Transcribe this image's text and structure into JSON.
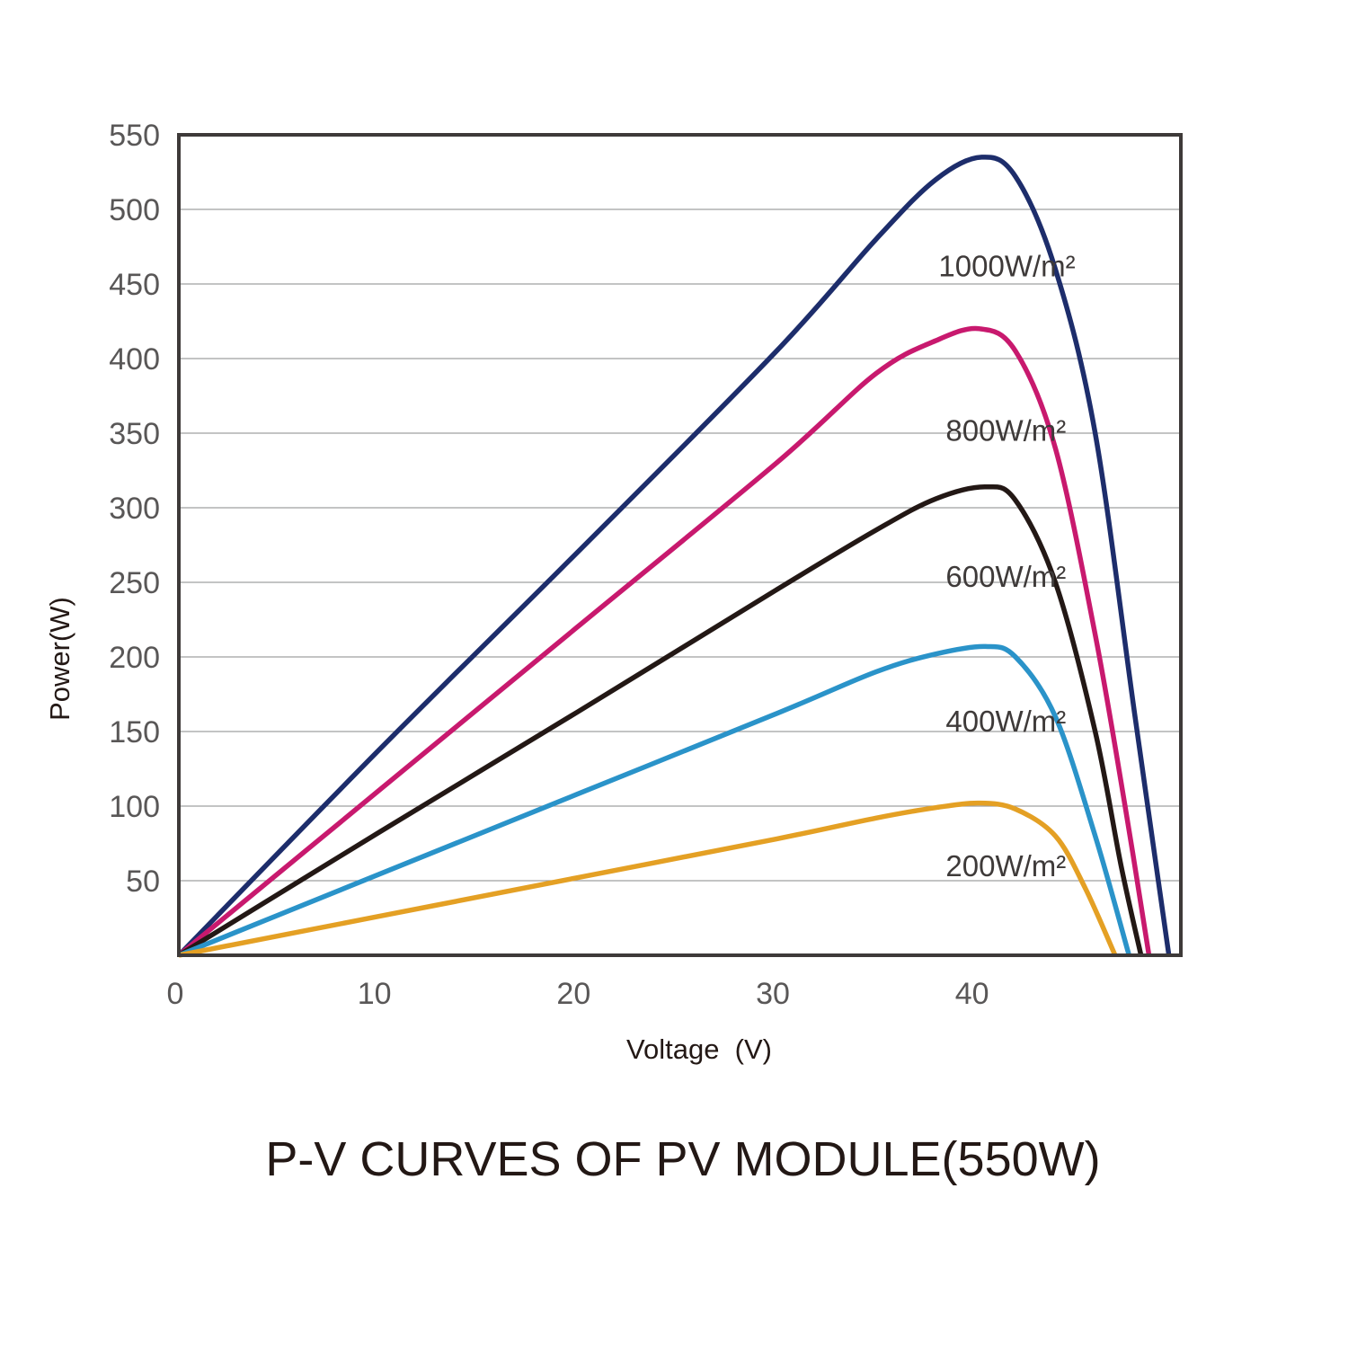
{
  "chart_data": {
    "type": "line",
    "title": "P-V CURVES OF PV MODULE(550W)",
    "xlabel": "Voltage  (V)",
    "ylabel": "Power(W)",
    "xlim": [
      0,
      50.3
    ],
    "ylim": [
      0,
      550
    ],
    "xticks": [
      0,
      10,
      20,
      30,
      40
    ],
    "yticks": [
      50,
      100,
      150,
      200,
      250,
      300,
      350,
      400,
      450,
      500,
      550
    ],
    "grid": "horizontal",
    "series": [
      {
        "name": "1000W/m²",
        "color": "#1d2d6b",
        "label_at": [
          38.5,
          455
        ],
        "points": [
          [
            0,
            0
          ],
          [
            10,
            137
          ],
          [
            20,
            270
          ],
          [
            30,
            405
          ],
          [
            35,
            480
          ],
          [
            38,
            520
          ],
          [
            40.3,
            535
          ],
          [
            42,
            522
          ],
          [
            44,
            460
          ],
          [
            46,
            350
          ],
          [
            48,
            160
          ],
          [
            49.7,
            0
          ]
        ]
      },
      {
        "name": "800W/m²",
        "color": "#c8196e",
        "label_at": [
          38.5,
          345
        ],
        "points": [
          [
            0,
            0
          ],
          [
            10,
            110
          ],
          [
            20,
            220
          ],
          [
            30,
            330
          ],
          [
            35,
            390
          ],
          [
            38,
            412
          ],
          [
            40.2,
            420
          ],
          [
            42,
            405
          ],
          [
            44,
            340
          ],
          [
            46,
            215
          ],
          [
            47.5,
            100
          ],
          [
            48.7,
            0
          ]
        ]
      },
      {
        "name": "600W/m²",
        "color": "#231815",
        "label_at": [
          38.5,
          247
        ],
        "points": [
          [
            0,
            0
          ],
          [
            10,
            82
          ],
          [
            20,
            163
          ],
          [
            30,
            245
          ],
          [
            35,
            285
          ],
          [
            38,
            306
          ],
          [
            40.5,
            314
          ],
          [
            42,
            305
          ],
          [
            44,
            250
          ],
          [
            46,
            150
          ],
          [
            47.3,
            60
          ],
          [
            48.3,
            0
          ]
        ]
      },
      {
        "name": "400W/m²",
        "color": "#2a93c9",
        "label_at": [
          38.5,
          150
        ],
        "points": [
          [
            0,
            0
          ],
          [
            10,
            54
          ],
          [
            20,
            108
          ],
          [
            30,
            162
          ],
          [
            35,
            190
          ],
          [
            38,
            202
          ],
          [
            40.5,
            207
          ],
          [
            42,
            200
          ],
          [
            44,
            160
          ],
          [
            46,
            80
          ],
          [
            47.7,
            0
          ]
        ]
      },
      {
        "name": "200W/m²",
        "color": "#e4a024",
        "label_at": [
          38.5,
          53
        ],
        "points": [
          [
            0,
            0
          ],
          [
            10,
            26
          ],
          [
            20,
            52
          ],
          [
            30,
            78
          ],
          [
            35,
            92
          ],
          [
            38,
            99
          ],
          [
            40.2,
            102
          ],
          [
            42,
            98
          ],
          [
            44,
            80
          ],
          [
            45.5,
            45
          ],
          [
            47,
            0
          ]
        ]
      }
    ]
  }
}
